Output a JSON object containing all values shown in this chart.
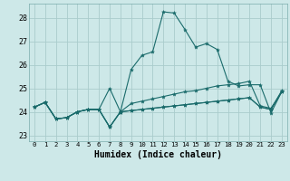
{
  "bg_color": "#cde8e8",
  "grid_color": "#aacccc",
  "line_color": "#1a6b6b",
  "xlabel": "Humidex (Indice chaleur)",
  "xlabel_fontsize": 7.0,
  "ytick_fontsize": 6.0,
  "xtick_fontsize": 5.2,
  "yticks": [
    23,
    24,
    25,
    26,
    27,
    28
  ],
  "xticks": [
    0,
    1,
    2,
    3,
    4,
    5,
    6,
    7,
    8,
    9,
    10,
    11,
    12,
    13,
    14,
    15,
    16,
    17,
    18,
    19,
    20,
    21,
    22,
    23
  ],
  "xlim": [
    -0.5,
    23.5
  ],
  "ylim": [
    22.75,
    28.6
  ],
  "lines": [
    [
      24.2,
      24.4,
      23.7,
      23.75,
      24.0,
      24.1,
      24.1,
      23.35,
      24.0,
      24.05,
      24.1,
      24.15,
      24.2,
      24.25,
      24.3,
      24.35,
      24.4,
      24.45,
      24.5,
      24.55,
      24.6,
      24.2,
      24.1,
      24.85
    ],
    [
      24.2,
      24.4,
      23.7,
      23.75,
      24.0,
      24.1,
      24.1,
      25.0,
      24.0,
      25.8,
      26.4,
      26.55,
      28.25,
      28.2,
      27.5,
      26.75,
      26.9,
      26.65,
      25.3,
      25.1,
      25.15,
      25.15,
      23.95,
      24.85
    ],
    [
      24.2,
      24.4,
      23.7,
      23.75,
      24.0,
      24.1,
      24.1,
      23.35,
      24.0,
      24.35,
      24.45,
      24.55,
      24.65,
      24.75,
      24.85,
      24.9,
      25.0,
      25.1,
      25.15,
      25.2,
      25.3,
      24.25,
      24.15,
      24.85
    ],
    [
      24.2,
      24.4,
      23.7,
      23.75,
      24.0,
      24.1,
      24.1,
      23.35,
      24.0,
      24.05,
      24.1,
      24.15,
      24.2,
      24.25,
      24.3,
      24.35,
      24.4,
      24.45,
      24.5,
      24.55,
      24.6,
      24.2,
      24.1,
      24.9
    ]
  ]
}
